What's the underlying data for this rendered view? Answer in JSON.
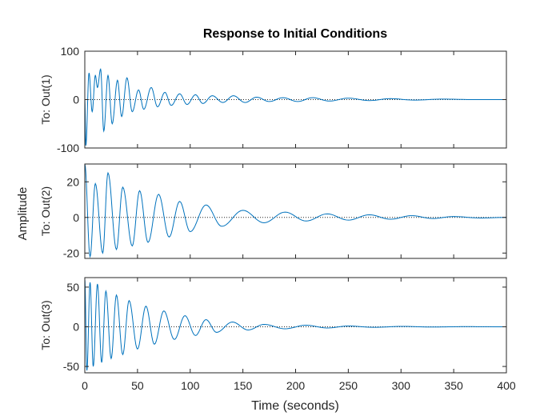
{
  "chart_data": {
    "type": "line",
    "title": "Response to Initial Conditions",
    "xlabel": "Time (seconds)",
    "ylabel": "Amplitude",
    "xlim": [
      0,
      400
    ],
    "xticks": [
      0,
      50,
      100,
      150,
      200,
      250,
      300,
      350,
      400
    ],
    "xtick_labels": [
      "0",
      "50",
      "100",
      "150",
      "200",
      "250",
      "300",
      "350",
      "400"
    ],
    "grid": false,
    "colors": {
      "line": "#0072BD",
      "axis": "#262626",
      "zero_line": "#262626"
    },
    "panels": [
      {
        "ylabel": "To: Out(1)",
        "ylim": [
          -100,
          100
        ],
        "yticks": [
          -100,
          0,
          100
        ],
        "ytick_labels": [
          "-100",
          "0",
          "100"
        ],
        "series": [
          {
            "t": [
              0,
              1,
              4,
              7,
              10,
              12,
              15,
              18,
              22,
              26,
              31,
              35,
              40,
              45,
              51,
              56,
              63,
              69,
              76,
              82,
              90,
              97,
              105,
              112,
              121,
              131,
              141,
              152,
              163,
              175,
              188,
              202,
              216,
              232,
              250,
              270,
              290,
              312,
              340,
              370,
              400
            ],
            "y": [
              0,
              -95,
              55,
              -25,
              50,
              25,
              63,
              -65,
              50,
              -50,
              40,
              -35,
              45,
              -25,
              20,
              -20,
              25,
              -15,
              15,
              -12,
              12,
              -10,
              10,
              -8,
              8,
              -6,
              8,
              -6,
              5,
              -4,
              4,
              -4,
              4,
              -3,
              3,
              -2,
              2,
              -1,
              1,
              0,
              0
            ]
          }
        ]
      },
      {
        "ylabel": "To: Out(2)",
        "ylim": [
          -23,
          30
        ],
        "yticks": [
          -20,
          0,
          20
        ],
        "ytick_labels": [
          "-20",
          "0",
          "20"
        ],
        "series": [
          {
            "t": [
              0,
              5,
              10,
              17,
              22,
              30,
              36,
              45,
              52,
              60,
              70,
              80,
              90,
              100,
              115,
              130,
              150,
              170,
              190,
              210,
              230,
              250,
              270,
              290,
              310,
              330,
              350,
              375,
              400
            ],
            "y": [
              30,
              -22,
              19,
              -20,
              25,
              -18,
              17,
              -16,
              15,
              -14,
              13,
              -11,
              9,
              -8,
              7,
              -5,
              4,
              -3,
              3,
              -2,
              2,
              -1.5,
              1.5,
              -1,
              1,
              -0.6,
              0.5,
              -0.3,
              0
            ]
          }
        ]
      },
      {
        "ylabel": "To: Out(3)",
        "ylim": [
          -58,
          62
        ],
        "yticks": [
          -50,
          0,
          50
        ],
        "ytick_labels": [
          "-50",
          "0",
          "50"
        ],
        "series": [
          {
            "t": [
              0,
              2,
              5,
              8,
              12,
              16,
              20,
              25,
              30,
              36,
              42,
              50,
              58,
              66,
              75,
              85,
              95,
              105,
              115,
              125,
              140,
              155,
              170,
              190,
              210,
              230,
              250,
              275,
              300,
              330,
              360,
              400
            ],
            "y": [
              60,
              -55,
              56,
              -50,
              54,
              -45,
              45,
              -40,
              40,
              -35,
              33,
              -28,
              26,
              -22,
              20,
              -16,
              14,
              -11,
              9,
              -7,
              6,
              -4,
              3,
              -2.5,
              2,
              -1.5,
              1,
              -0.7,
              0.5,
              -0.3,
              0.2,
              0
            ]
          }
        ]
      }
    ]
  }
}
